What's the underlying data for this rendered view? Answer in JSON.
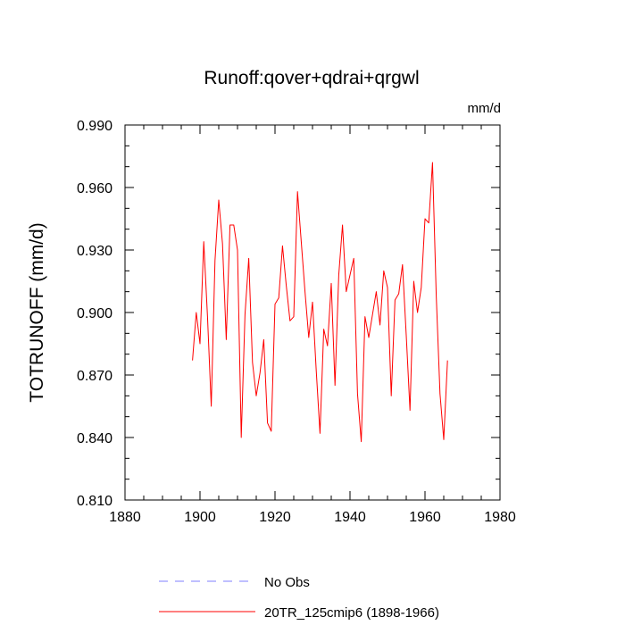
{
  "chart_data": {
    "type": "line",
    "title": "Runoff:qover+qdrai+qrgwl",
    "units_label": "mm/d",
    "ylabel": "TOTRUNOFF  (mm/d)",
    "xlabel": "",
    "xlim": [
      1880,
      1980
    ],
    "ylim": [
      0.81,
      0.99
    ],
    "x_ticks": [
      1880,
      1900,
      1920,
      1940,
      1960,
      1980
    ],
    "x_tick_labels": [
      "1880",
      "1900",
      "1920",
      "1940",
      "1960",
      "1980"
    ],
    "y_ticks": [
      0.81,
      0.84,
      0.87,
      0.9,
      0.93,
      0.96,
      0.99
    ],
    "y_tick_labels": [
      "0.810",
      "0.840",
      "0.870",
      "0.900",
      "0.930",
      "0.960",
      "0.990"
    ],
    "grid": false,
    "legend_position": "bottom",
    "legend": [
      {
        "label": "No Obs",
        "color": "#7f7fff",
        "style": "dashed"
      },
      {
        "label": "20TR_125cmip6 (1898-1966)",
        "color": "#ff0000",
        "style": "solid"
      }
    ],
    "series": [
      {
        "name": "20TR_125cmip6 (1898-1966)",
        "color": "#ff0000",
        "x": [
          1898,
          1899,
          1900,
          1901,
          1902,
          1903,
          1904,
          1905,
          1906,
          1907,
          1908,
          1909,
          1910,
          1911,
          1912,
          1913,
          1914,
          1915,
          1916,
          1917,
          1918,
          1919,
          1920,
          1921,
          1922,
          1923,
          1924,
          1925,
          1926,
          1927,
          1928,
          1929,
          1930,
          1931,
          1932,
          1933,
          1934,
          1935,
          1936,
          1937,
          1938,
          1939,
          1940,
          1941,
          1942,
          1943,
          1944,
          1945,
          1946,
          1947,
          1948,
          1949,
          1950,
          1951,
          1952,
          1953,
          1954,
          1955,
          1956,
          1957,
          1958,
          1959,
          1960,
          1961,
          1962,
          1963,
          1964,
          1965,
          1966
        ],
        "values": [
          0.877,
          0.9,
          0.885,
          0.934,
          0.898,
          0.855,
          0.925,
          0.954,
          0.933,
          0.887,
          0.942,
          0.942,
          0.93,
          0.84,
          0.899,
          0.926,
          0.876,
          0.86,
          0.871,
          0.887,
          0.847,
          0.843,
          0.904,
          0.907,
          0.932,
          0.913,
          0.896,
          0.898,
          0.958,
          0.934,
          0.91,
          0.888,
          0.905,
          0.872,
          0.842,
          0.892,
          0.884,
          0.914,
          0.865,
          0.918,
          0.942,
          0.91,
          0.918,
          0.926,
          0.861,
          0.838,
          0.898,
          0.888,
          0.899,
          0.91,
          0.894,
          0.92,
          0.912,
          0.86,
          0.906,
          0.909,
          0.923,
          0.889,
          0.853,
          0.915,
          0.9,
          0.912,
          0.945,
          0.943,
          0.972,
          0.908,
          0.861,
          0.839,
          0.877
        ]
      }
    ]
  }
}
